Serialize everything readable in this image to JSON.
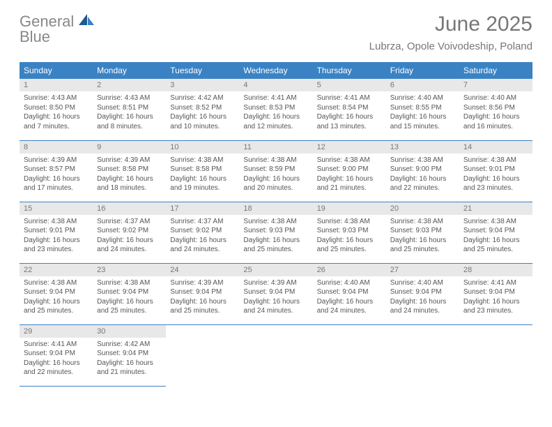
{
  "brand": {
    "line1": "General",
    "line2": "Blue"
  },
  "title": "June 2025",
  "subtitle": "Lubrza, Opole Voivodeship, Poland",
  "colors": {
    "header_bg": "#3a82c4",
    "daynum_bg": "#e8e8e8",
    "text": "#555555",
    "rule": "#3a82c4"
  },
  "fontsize": {
    "title": 30,
    "subtitle": 15,
    "dayhdr": 12,
    "daynum": 11,
    "body": 10
  },
  "day_headers": [
    "Sunday",
    "Monday",
    "Tuesday",
    "Wednesday",
    "Thursday",
    "Friday",
    "Saturday"
  ],
  "weeks": [
    [
      {
        "n": "1",
        "sr": "Sunrise: 4:43 AM",
        "ss": "Sunset: 8:50 PM",
        "dl": "Daylight: 16 hours and 7 minutes."
      },
      {
        "n": "2",
        "sr": "Sunrise: 4:43 AM",
        "ss": "Sunset: 8:51 PM",
        "dl": "Daylight: 16 hours and 8 minutes."
      },
      {
        "n": "3",
        "sr": "Sunrise: 4:42 AM",
        "ss": "Sunset: 8:52 PM",
        "dl": "Daylight: 16 hours and 10 minutes."
      },
      {
        "n": "4",
        "sr": "Sunrise: 4:41 AM",
        "ss": "Sunset: 8:53 PM",
        "dl": "Daylight: 16 hours and 12 minutes."
      },
      {
        "n": "5",
        "sr": "Sunrise: 4:41 AM",
        "ss": "Sunset: 8:54 PM",
        "dl": "Daylight: 16 hours and 13 minutes."
      },
      {
        "n": "6",
        "sr": "Sunrise: 4:40 AM",
        "ss": "Sunset: 8:55 PM",
        "dl": "Daylight: 16 hours and 15 minutes."
      },
      {
        "n": "7",
        "sr": "Sunrise: 4:40 AM",
        "ss": "Sunset: 8:56 PM",
        "dl": "Daylight: 16 hours and 16 minutes."
      }
    ],
    [
      {
        "n": "8",
        "sr": "Sunrise: 4:39 AM",
        "ss": "Sunset: 8:57 PM",
        "dl": "Daylight: 16 hours and 17 minutes."
      },
      {
        "n": "9",
        "sr": "Sunrise: 4:39 AM",
        "ss": "Sunset: 8:58 PM",
        "dl": "Daylight: 16 hours and 18 minutes."
      },
      {
        "n": "10",
        "sr": "Sunrise: 4:38 AM",
        "ss": "Sunset: 8:58 PM",
        "dl": "Daylight: 16 hours and 19 minutes."
      },
      {
        "n": "11",
        "sr": "Sunrise: 4:38 AM",
        "ss": "Sunset: 8:59 PM",
        "dl": "Daylight: 16 hours and 20 minutes."
      },
      {
        "n": "12",
        "sr": "Sunrise: 4:38 AM",
        "ss": "Sunset: 9:00 PM",
        "dl": "Daylight: 16 hours and 21 minutes."
      },
      {
        "n": "13",
        "sr": "Sunrise: 4:38 AM",
        "ss": "Sunset: 9:00 PM",
        "dl": "Daylight: 16 hours and 22 minutes."
      },
      {
        "n": "14",
        "sr": "Sunrise: 4:38 AM",
        "ss": "Sunset: 9:01 PM",
        "dl": "Daylight: 16 hours and 23 minutes."
      }
    ],
    [
      {
        "n": "15",
        "sr": "Sunrise: 4:38 AM",
        "ss": "Sunset: 9:01 PM",
        "dl": "Daylight: 16 hours and 23 minutes."
      },
      {
        "n": "16",
        "sr": "Sunrise: 4:37 AM",
        "ss": "Sunset: 9:02 PM",
        "dl": "Daylight: 16 hours and 24 minutes."
      },
      {
        "n": "17",
        "sr": "Sunrise: 4:37 AM",
        "ss": "Sunset: 9:02 PM",
        "dl": "Daylight: 16 hours and 24 minutes."
      },
      {
        "n": "18",
        "sr": "Sunrise: 4:38 AM",
        "ss": "Sunset: 9:03 PM",
        "dl": "Daylight: 16 hours and 25 minutes."
      },
      {
        "n": "19",
        "sr": "Sunrise: 4:38 AM",
        "ss": "Sunset: 9:03 PM",
        "dl": "Daylight: 16 hours and 25 minutes."
      },
      {
        "n": "20",
        "sr": "Sunrise: 4:38 AM",
        "ss": "Sunset: 9:03 PM",
        "dl": "Daylight: 16 hours and 25 minutes."
      },
      {
        "n": "21",
        "sr": "Sunrise: 4:38 AM",
        "ss": "Sunset: 9:04 PM",
        "dl": "Daylight: 16 hours and 25 minutes."
      }
    ],
    [
      {
        "n": "22",
        "sr": "Sunrise: 4:38 AM",
        "ss": "Sunset: 9:04 PM",
        "dl": "Daylight: 16 hours and 25 minutes."
      },
      {
        "n": "23",
        "sr": "Sunrise: 4:38 AM",
        "ss": "Sunset: 9:04 PM",
        "dl": "Daylight: 16 hours and 25 minutes."
      },
      {
        "n": "24",
        "sr": "Sunrise: 4:39 AM",
        "ss": "Sunset: 9:04 PM",
        "dl": "Daylight: 16 hours and 25 minutes."
      },
      {
        "n": "25",
        "sr": "Sunrise: 4:39 AM",
        "ss": "Sunset: 9:04 PM",
        "dl": "Daylight: 16 hours and 24 minutes."
      },
      {
        "n": "26",
        "sr": "Sunrise: 4:40 AM",
        "ss": "Sunset: 9:04 PM",
        "dl": "Daylight: 16 hours and 24 minutes."
      },
      {
        "n": "27",
        "sr": "Sunrise: 4:40 AM",
        "ss": "Sunset: 9:04 PM",
        "dl": "Daylight: 16 hours and 24 minutes."
      },
      {
        "n": "28",
        "sr": "Sunrise: 4:41 AM",
        "ss": "Sunset: 9:04 PM",
        "dl": "Daylight: 16 hours and 23 minutes."
      }
    ],
    [
      {
        "n": "29",
        "sr": "Sunrise: 4:41 AM",
        "ss": "Sunset: 9:04 PM",
        "dl": "Daylight: 16 hours and 22 minutes."
      },
      {
        "n": "30",
        "sr": "Sunrise: 4:42 AM",
        "ss": "Sunset: 9:04 PM",
        "dl": "Daylight: 16 hours and 21 minutes."
      },
      null,
      null,
      null,
      null,
      null
    ]
  ]
}
